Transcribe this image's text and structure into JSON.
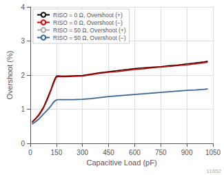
{
  "chart_data": {
    "type": "line",
    "xlabel": "Capacitive Load (pF)",
    "ylabel": "Overshoot (%)",
    "annotations": [
      "11652"
    ],
    "xlim": [
      0,
      1050
    ],
    "ylim": [
      0,
      4
    ],
    "xticks": [
      0,
      150,
      300,
      450,
      600,
      750,
      900,
      1050
    ],
    "yticks": [
      0,
      1,
      2,
      3,
      4
    ],
    "grid": true,
    "legend": "upper left",
    "x": [
      10,
      30,
      50,
      75,
      100,
      120,
      130,
      140,
      150,
      160,
      175,
      200,
      250,
      300,
      350,
      400,
      450,
      500,
      550,
      600,
      650,
      700,
      750,
      800,
      850,
      900,
      950,
      1000,
      1020
    ],
    "series": [
      {
        "name": "RISO = 0 Ω, Overshoot (+)",
        "color": "#000000",
        "values": [
          0.62,
          0.73,
          0.85,
          1.05,
          1.35,
          1.6,
          1.75,
          1.88,
          1.97,
          1.98,
          1.97,
          1.97,
          1.98,
          1.99,
          2.03,
          2.07,
          2.1,
          2.13,
          2.16,
          2.19,
          2.21,
          2.23,
          2.25,
          2.28,
          2.3,
          2.33,
          2.36,
          2.39,
          2.41
        ]
      },
      {
        "name": "RISO = 0 Ω, Overshoot (−)",
        "color": "#dd0000",
        "values": [
          0.6,
          0.71,
          0.82,
          1.02,
          1.3,
          1.56,
          1.7,
          1.83,
          1.94,
          1.95,
          1.95,
          1.95,
          1.96,
          1.97,
          2.01,
          2.05,
          2.08,
          2.1,
          2.13,
          2.16,
          2.18,
          2.21,
          2.23,
          2.25,
          2.28,
          2.3,
          2.33,
          2.36,
          2.38
        ]
      },
      {
        "name": "RISO = 50 Ω, Overshoot (+)",
        "color": "#aaaaaa",
        "values": [
          0.58,
          0.65,
          0.73,
          0.87,
          1.0,
          1.12,
          1.2,
          1.25,
          1.28,
          1.29,
          1.29,
          1.29,
          1.29,
          1.3,
          1.32,
          1.35,
          1.38,
          1.4,
          1.42,
          1.44,
          1.46,
          1.48,
          1.5,
          1.52,
          1.54,
          1.56,
          1.57,
          1.59,
          1.6
        ]
      },
      {
        "name": "RISO = 50 Ω, Overshoot (−)",
        "color": "#336699",
        "values": [
          0.56,
          0.63,
          0.71,
          0.85,
          0.98,
          1.1,
          1.18,
          1.23,
          1.27,
          1.28,
          1.28,
          1.28,
          1.28,
          1.29,
          1.31,
          1.34,
          1.37,
          1.39,
          1.41,
          1.43,
          1.45,
          1.47,
          1.49,
          1.51,
          1.53,
          1.55,
          1.56,
          1.58,
          1.59
        ]
      }
    ]
  }
}
